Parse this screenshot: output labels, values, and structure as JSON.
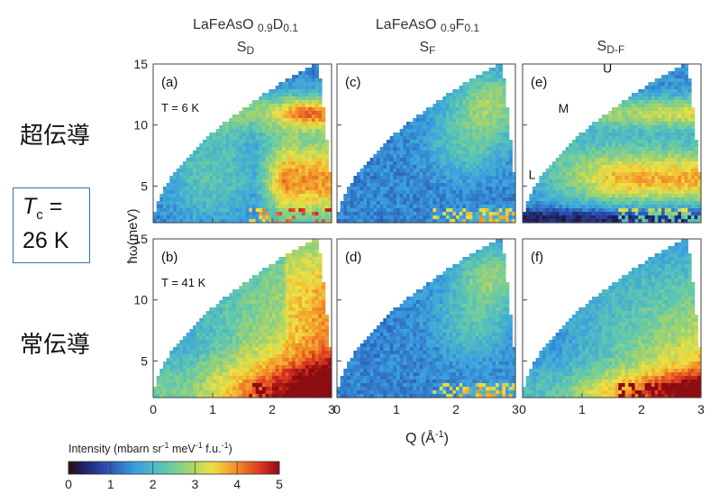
{
  "columns": [
    {
      "compound": "LaFeAsO",
      "sub1": "0.9",
      "el": "D",
      "sub2": "0.1",
      "quantity": "S",
      "qsub": "D"
    },
    {
      "compound": "LaFeAsO",
      "sub1": "0.9",
      "el": "F",
      "sub2": "0.1",
      "quantity": "S",
      "qsub": "F"
    },
    {
      "quantity": "S",
      "qsub": "D-F"
    }
  ],
  "rows": [
    {
      "label": "超伝導"
    },
    {
      "label": "常伝導"
    }
  ],
  "tc_box": {
    "symbol": "T",
    "sub": "c",
    "eq": "=",
    "value": "26 K"
  },
  "colors": {
    "box_border": "#2e75b6"
  },
  "chart_data": {
    "type": "heatmap",
    "xlabel": "Q (Å",
    "xlabel_sup": "-1",
    "xlabel_end": ")",
    "ylabel": "ħω(meV)",
    "xlim": [
      0,
      3
    ],
    "ylim": [
      2,
      15
    ],
    "xticks": [
      "0",
      "1",
      "2",
      "3"
    ],
    "yticks": [
      "5",
      "10",
      "15"
    ],
    "colormap": "jet",
    "colorbar": {
      "label": "Intensity  (mbarn sr",
      "label_sup1": "-1",
      "label_mid": " meV",
      "label_sup2": "-1",
      "label_mid2": " f.u.",
      "label_sup3": "-1",
      "label_end": ")",
      "min": 0,
      "max": 5,
      "ticks": [
        "0",
        "1",
        "2",
        "3",
        "4",
        "5"
      ]
    },
    "panels": [
      {
        "id": "a",
        "label": "(a)",
        "temp": "T = 6 K",
        "row": 0,
        "col": 0
      },
      {
        "id": "c",
        "label": "(c)",
        "row": 0,
        "col": 1
      },
      {
        "id": "e",
        "label": "(e)",
        "row": 0,
        "col": 2,
        "annotations": [
          {
            "text": "U",
            "q": 1.35,
            "e": 14.3
          },
          {
            "text": "M",
            "q": 0.6,
            "e": 11.0
          },
          {
            "text": "L",
            "q": 0.1,
            "e": 5.6
          }
        ]
      },
      {
        "id": "b",
        "label": "(b)",
        "temp": "T = 41 K",
        "row": 1,
        "col": 0
      },
      {
        "id": "d",
        "label": "(d)",
        "row": 1,
        "col": 1
      },
      {
        "id": "f",
        "label": "(f)",
        "row": 1,
        "col": 2
      }
    ]
  }
}
